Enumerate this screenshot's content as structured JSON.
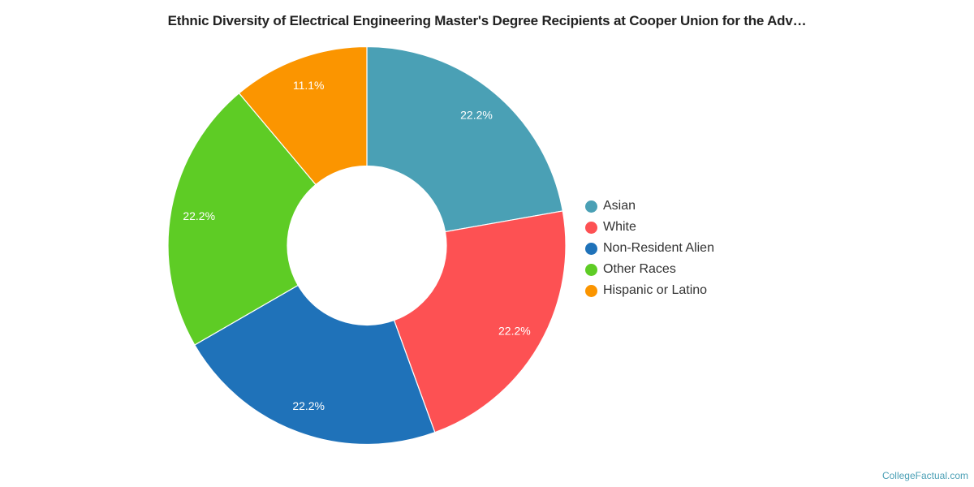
{
  "title": "Ethnic Diversity of Electrical Engineering Master's Degree Recipients at Cooper Union for the Adv…",
  "credit": "CollegeFactual.com",
  "chart_data": {
    "type": "pie",
    "variant": "donut",
    "title": "Ethnic Diversity of Electrical Engineering Master's Degree Recipients at Cooper Union for the Adv…",
    "categories": [
      "Asian",
      "White",
      "Non-Resident Alien",
      "Other Races",
      "Hispanic or Latino"
    ],
    "values": [
      22.2,
      22.2,
      22.2,
      22.2,
      11.1
    ],
    "labels": [
      "22.2%",
      "22.2%",
      "22.2%",
      "22.2%",
      "11.1%"
    ],
    "colors": [
      "#4aa0b5",
      "#fd5153",
      "#1f72b9",
      "#5ecc25",
      "#fb9500"
    ],
    "legend_position": "right",
    "start_angle": "top, clockwise"
  },
  "legend": {
    "items": [
      {
        "label": "Asian",
        "color": "#4aa0b5"
      },
      {
        "label": "White",
        "color": "#fd5153"
      },
      {
        "label": "Non-Resident Alien",
        "color": "#1f72b9"
      },
      {
        "label": "Other Races",
        "color": "#5ecc25"
      },
      {
        "label": "Hispanic or Latino",
        "color": "#fb9500"
      }
    ]
  }
}
